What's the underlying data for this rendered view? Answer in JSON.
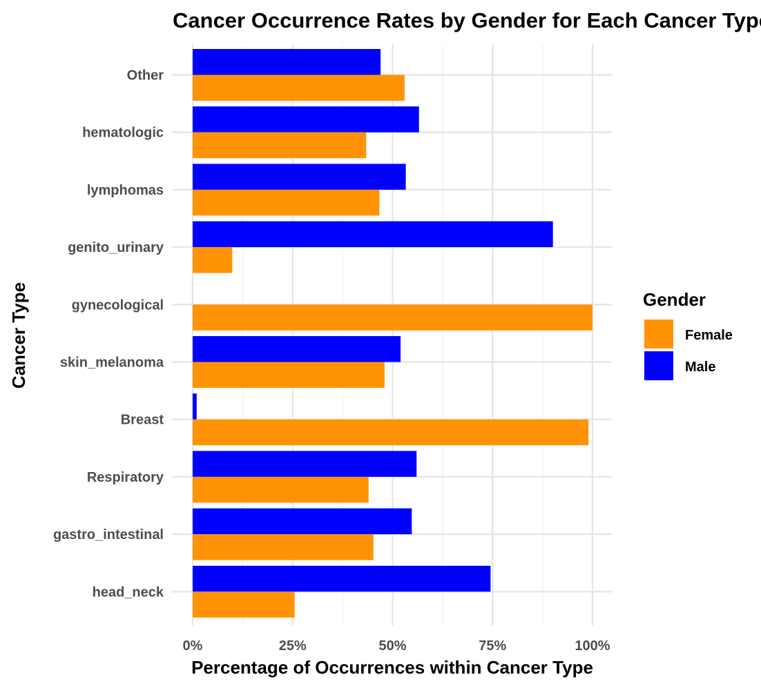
{
  "chart_data": {
    "type": "bar",
    "orientation": "horizontal",
    "title": "Cancer Occurrence Rates by Gender for Each Cancer Type",
    "xlabel": "Percentage of Occurrences within Cancer Type",
    "ylabel": "Cancer Type",
    "xlim": [
      0,
      1
    ],
    "x_ticks": [
      0,
      0.25,
      0.5,
      0.75,
      1
    ],
    "x_tick_labels": [
      "0%",
      "25%",
      "50%",
      "75%",
      "100%"
    ],
    "grid": true,
    "categories": [
      "Other",
      "hematologic",
      "lymphomas",
      "genito_urinary",
      "gynecological",
      "skin_melanoma",
      "Breast",
      "Respiratory",
      "gastro_intestinal",
      "head_neck"
    ],
    "series": [
      {
        "name": "Male",
        "color": "#0000ff",
        "values": [
          0.47,
          0.566,
          0.533,
          0.901,
          0,
          0.52,
          0.01,
          0.56,
          0.548,
          0.745
        ]
      },
      {
        "name": "Female",
        "color": "#ff9305",
        "values": [
          0.53,
          0.434,
          0.467,
          0.099,
          1.0,
          0.48,
          0.99,
          0.44,
          0.452,
          0.255
        ]
      }
    ],
    "legend": {
      "title": "Gender",
      "placement": "right",
      "entries": [
        {
          "label": "Female",
          "color": "#ff9305"
        },
        {
          "label": "Male",
          "color": "#0000ff"
        }
      ]
    }
  }
}
